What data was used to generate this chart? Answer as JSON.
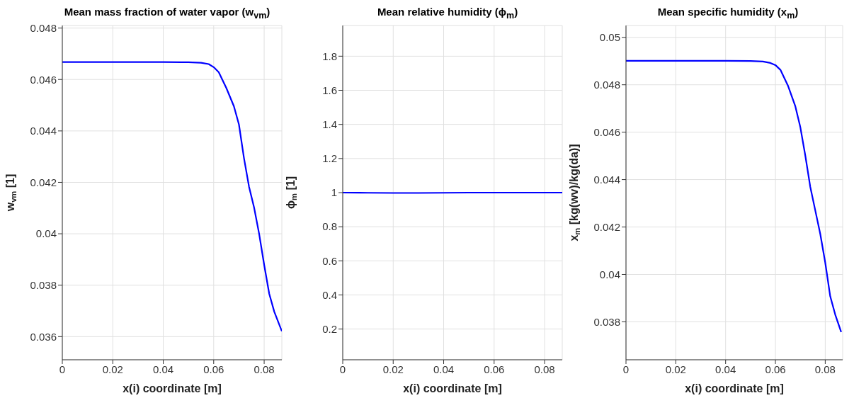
{
  "chart_data": [
    {
      "type": "line",
      "title": "Mean mass fraction of water vapor (w$_{vm}$)",
      "xlabel": "x(i) coordinate [m]",
      "ylabel": "w$_{vm}$ [1]",
      "x": [
        0,
        0.01,
        0.02,
        0.03,
        0.04,
        0.05,
        0.055,
        0.058,
        0.06,
        0.062,
        0.065,
        0.068,
        0.07,
        0.072,
        0.074,
        0.076,
        0.078,
        0.08,
        0.082,
        0.084,
        0.087
      ],
      "series": [
        {
          "color": "#0000ff",
          "values": [
            0.04668,
            0.04668,
            0.04668,
            0.04668,
            0.04668,
            0.04667,
            0.04665,
            0.0466,
            0.04648,
            0.04628,
            0.04567,
            0.04496,
            0.04425,
            0.04294,
            0.04183,
            0.04102,
            0.04,
            0.03879,
            0.03767,
            0.03697,
            0.03621
          ]
        }
      ],
      "xlim": [
        0,
        0.087
      ],
      "xticks": [
        0,
        0.02,
        0.04,
        0.06,
        0.08
      ],
      "ylim": [
        0.0351,
        0.0481
      ],
      "yticks": [
        0.036,
        0.038,
        0.04,
        0.042,
        0.044,
        0.046,
        0.048
      ],
      "grid": true,
      "marker": "none",
      "line_style": "solid"
    },
    {
      "type": "line",
      "title": "Mean relative humidity (ϕ$_{m}$)",
      "xlabel": "x(i) coordinate [m]",
      "ylabel": "ϕ$_{m}$ [1]",
      "x": [
        0,
        0.01,
        0.02,
        0.03,
        0.04,
        0.05,
        0.06,
        0.07,
        0.08,
        0.087
      ],
      "series": [
        {
          "color": "#0000ff",
          "values": [
            1,
            0.999,
            0.998,
            0.998,
            0.999,
            1,
            1,
            1,
            1,
            1
          ]
        }
      ],
      "xlim": [
        0,
        0.087
      ],
      "xticks": [
        0,
        0.02,
        0.04,
        0.06,
        0.08
      ],
      "ylim": [
        0.02,
        1.98
      ],
      "yticks": [
        0.2,
        0.4,
        0.6,
        0.8,
        1,
        1.2,
        1.4,
        1.6,
        1.8
      ],
      "grid": true,
      "marker": "none",
      "line_style": "solid"
    },
    {
      "type": "line",
      "title": "Mean specific humidity (x$_{m}$)",
      "xlabel": "x(i) coordinate [m]",
      "ylabel": "x$_{m}$ [kg(wv)/kg(da)]",
      "x": [
        0,
        0.01,
        0.02,
        0.03,
        0.04,
        0.05,
        0.055,
        0.058,
        0.06,
        0.062,
        0.065,
        0.068,
        0.07,
        0.072,
        0.074,
        0.076,
        0.078,
        0.08,
        0.082,
        0.084,
        0.0864
      ],
      "series": [
        {
          "color": "#0000ff",
          "values": [
            0.04901,
            0.04901,
            0.04901,
            0.04901,
            0.04901,
            0.049,
            0.04898,
            0.04892,
            0.04883,
            0.04863,
            0.04797,
            0.04709,
            0.04621,
            0.04501,
            0.04369,
            0.0427,
            0.04171,
            0.0405,
            0.03908,
            0.03831,
            0.03757
          ]
        }
      ],
      "xlim": [
        0,
        0.087
      ],
      "xticks": [
        0,
        0.02,
        0.04,
        0.06,
        0.08
      ],
      "ylim": [
        0.0364,
        0.0505
      ],
      "yticks": [
        0.038,
        0.04,
        0.042,
        0.044,
        0.046,
        0.048,
        0.05
      ],
      "grid": true,
      "marker": "none",
      "line_style": "solid"
    }
  ]
}
